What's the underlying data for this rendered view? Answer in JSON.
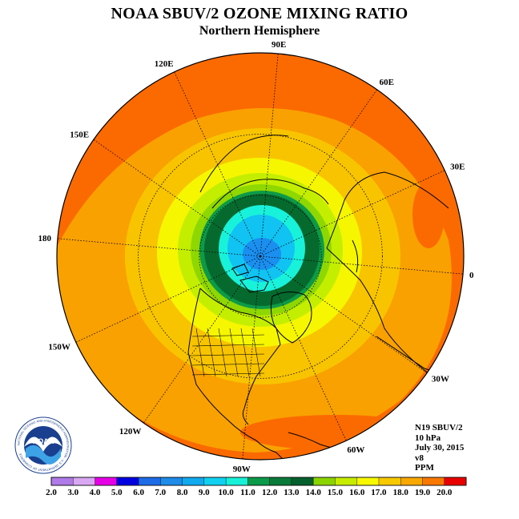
{
  "header": {
    "title": "NOAA SBUV/2 OZONE MIXING RATIO",
    "subtitle": "Northern Hemisphere"
  },
  "info": {
    "instrument": "N19 SBUV/2",
    "level": "10 hPa",
    "date": "July 30, 2015",
    "version": "v8",
    "units": "PPM"
  },
  "longitude_labels": [
    "0",
    "30E",
    "60E",
    "90E",
    "120E",
    "150E",
    "180",
    "150W",
    "120W",
    "90W",
    "60W",
    "30W"
  ],
  "colorbar": {
    "ticks": [
      "2.0",
      "3.0",
      "4.0",
      "5.0",
      "6.0",
      "7.0",
      "8.0",
      "9.0",
      "10.0",
      "11.0",
      "12.0",
      "13.0",
      "14.0",
      "15.0",
      "16.0",
      "17.0",
      "18.0",
      "19.0",
      "20.0"
    ],
    "colors": [
      "#b07ae8",
      "#d9a8f2",
      "#e600e6",
      "#0000e0",
      "#1e6be8",
      "#1e8ce8",
      "#12aaee",
      "#12d0f0",
      "#19f0d8",
      "#0a9a4a",
      "#0a7a3a",
      "#06602e",
      "#8cd400",
      "#c8ec00",
      "#f8f800",
      "#f8c800",
      "#f8a800",
      "#f87800",
      "#e80000"
    ]
  },
  "logo": {
    "text": "NOAA",
    "ring_text": "NATIONAL OCEANIC AND ATMOSPHERIC ADMINISTRATION · U.S. DEPARTMENT OF COMMERCE"
  },
  "field_colors": {
    "outer": "#fb6a00",
    "orange2": "#f9a100",
    "orange1": "#f8c400",
    "yellow": "#f6f600",
    "yellowgreen": "#c4ee00",
    "lime": "#8fd700",
    "green": "#0d9a48",
    "darkgreen": "#066a2e",
    "cyan": "#19f2da",
    "sky": "#10c3f2",
    "blue": "#1a8ff0"
  }
}
